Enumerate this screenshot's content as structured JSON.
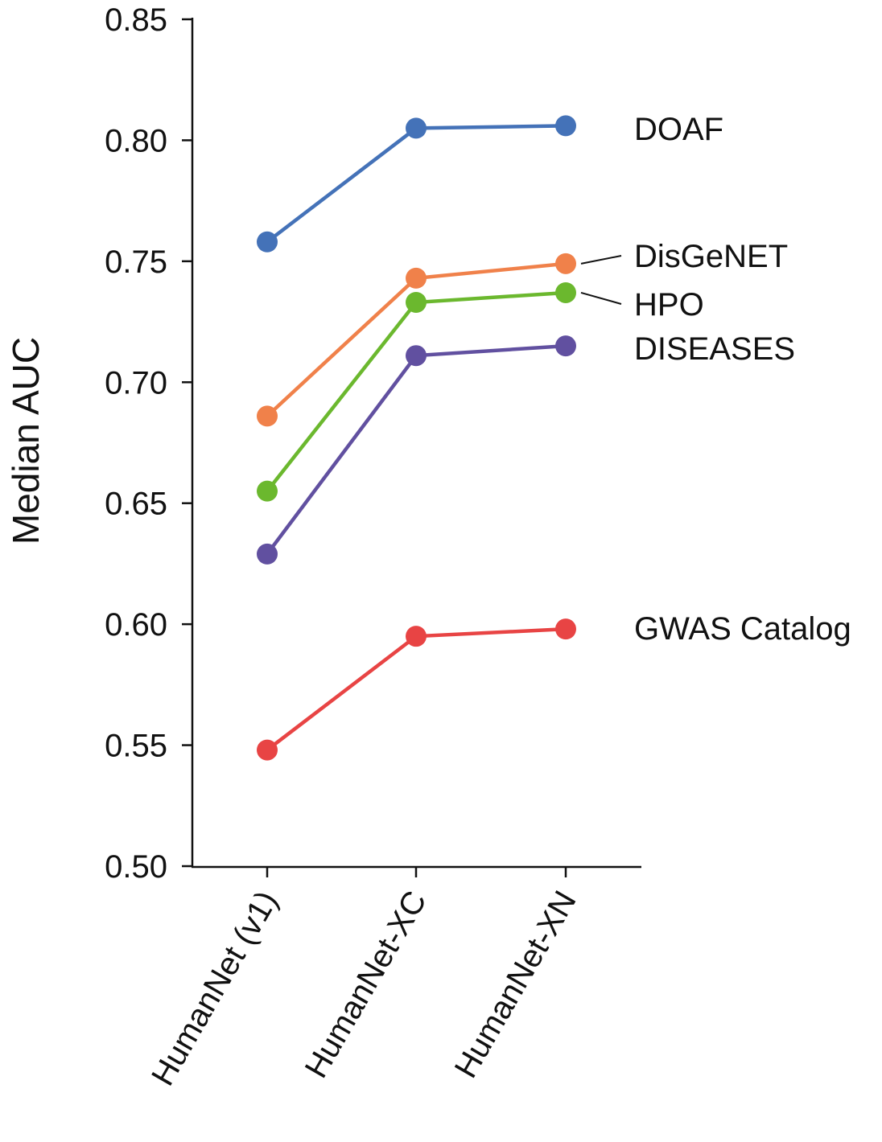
{
  "chart_data": {
    "type": "line",
    "title": "",
    "xlabel": "",
    "ylabel": "Median AUC",
    "categories": [
      "HumanNet (v1)",
      "HumanNet-XC",
      "HumanNet-XN"
    ],
    "ylim": [
      0.5,
      0.85
    ],
    "yticks": [
      "0.50",
      "0.55",
      "0.60",
      "0.65",
      "0.70",
      "0.75",
      "0.80",
      "0.85"
    ],
    "grid": false,
    "legend": "direct labels at right end of lines",
    "series": [
      {
        "name": "DOAF",
        "color": "#4472b8",
        "values": [
          0.758,
          0.805,
          0.806
        ]
      },
      {
        "name": "DisGeNET",
        "color": "#f0814a",
        "values": [
          0.686,
          0.743,
          0.749
        ]
      },
      {
        "name": "HPO",
        "color": "#6bb82e",
        "values": [
          0.655,
          0.733,
          0.737
        ]
      },
      {
        "name": "DISEASES",
        "color": "#6150a0",
        "values": [
          0.629,
          0.711,
          0.715
        ]
      },
      {
        "name": "GWAS Catalog",
        "color": "#e84444",
        "values": [
          0.548,
          0.595,
          0.598
        ]
      }
    ]
  }
}
